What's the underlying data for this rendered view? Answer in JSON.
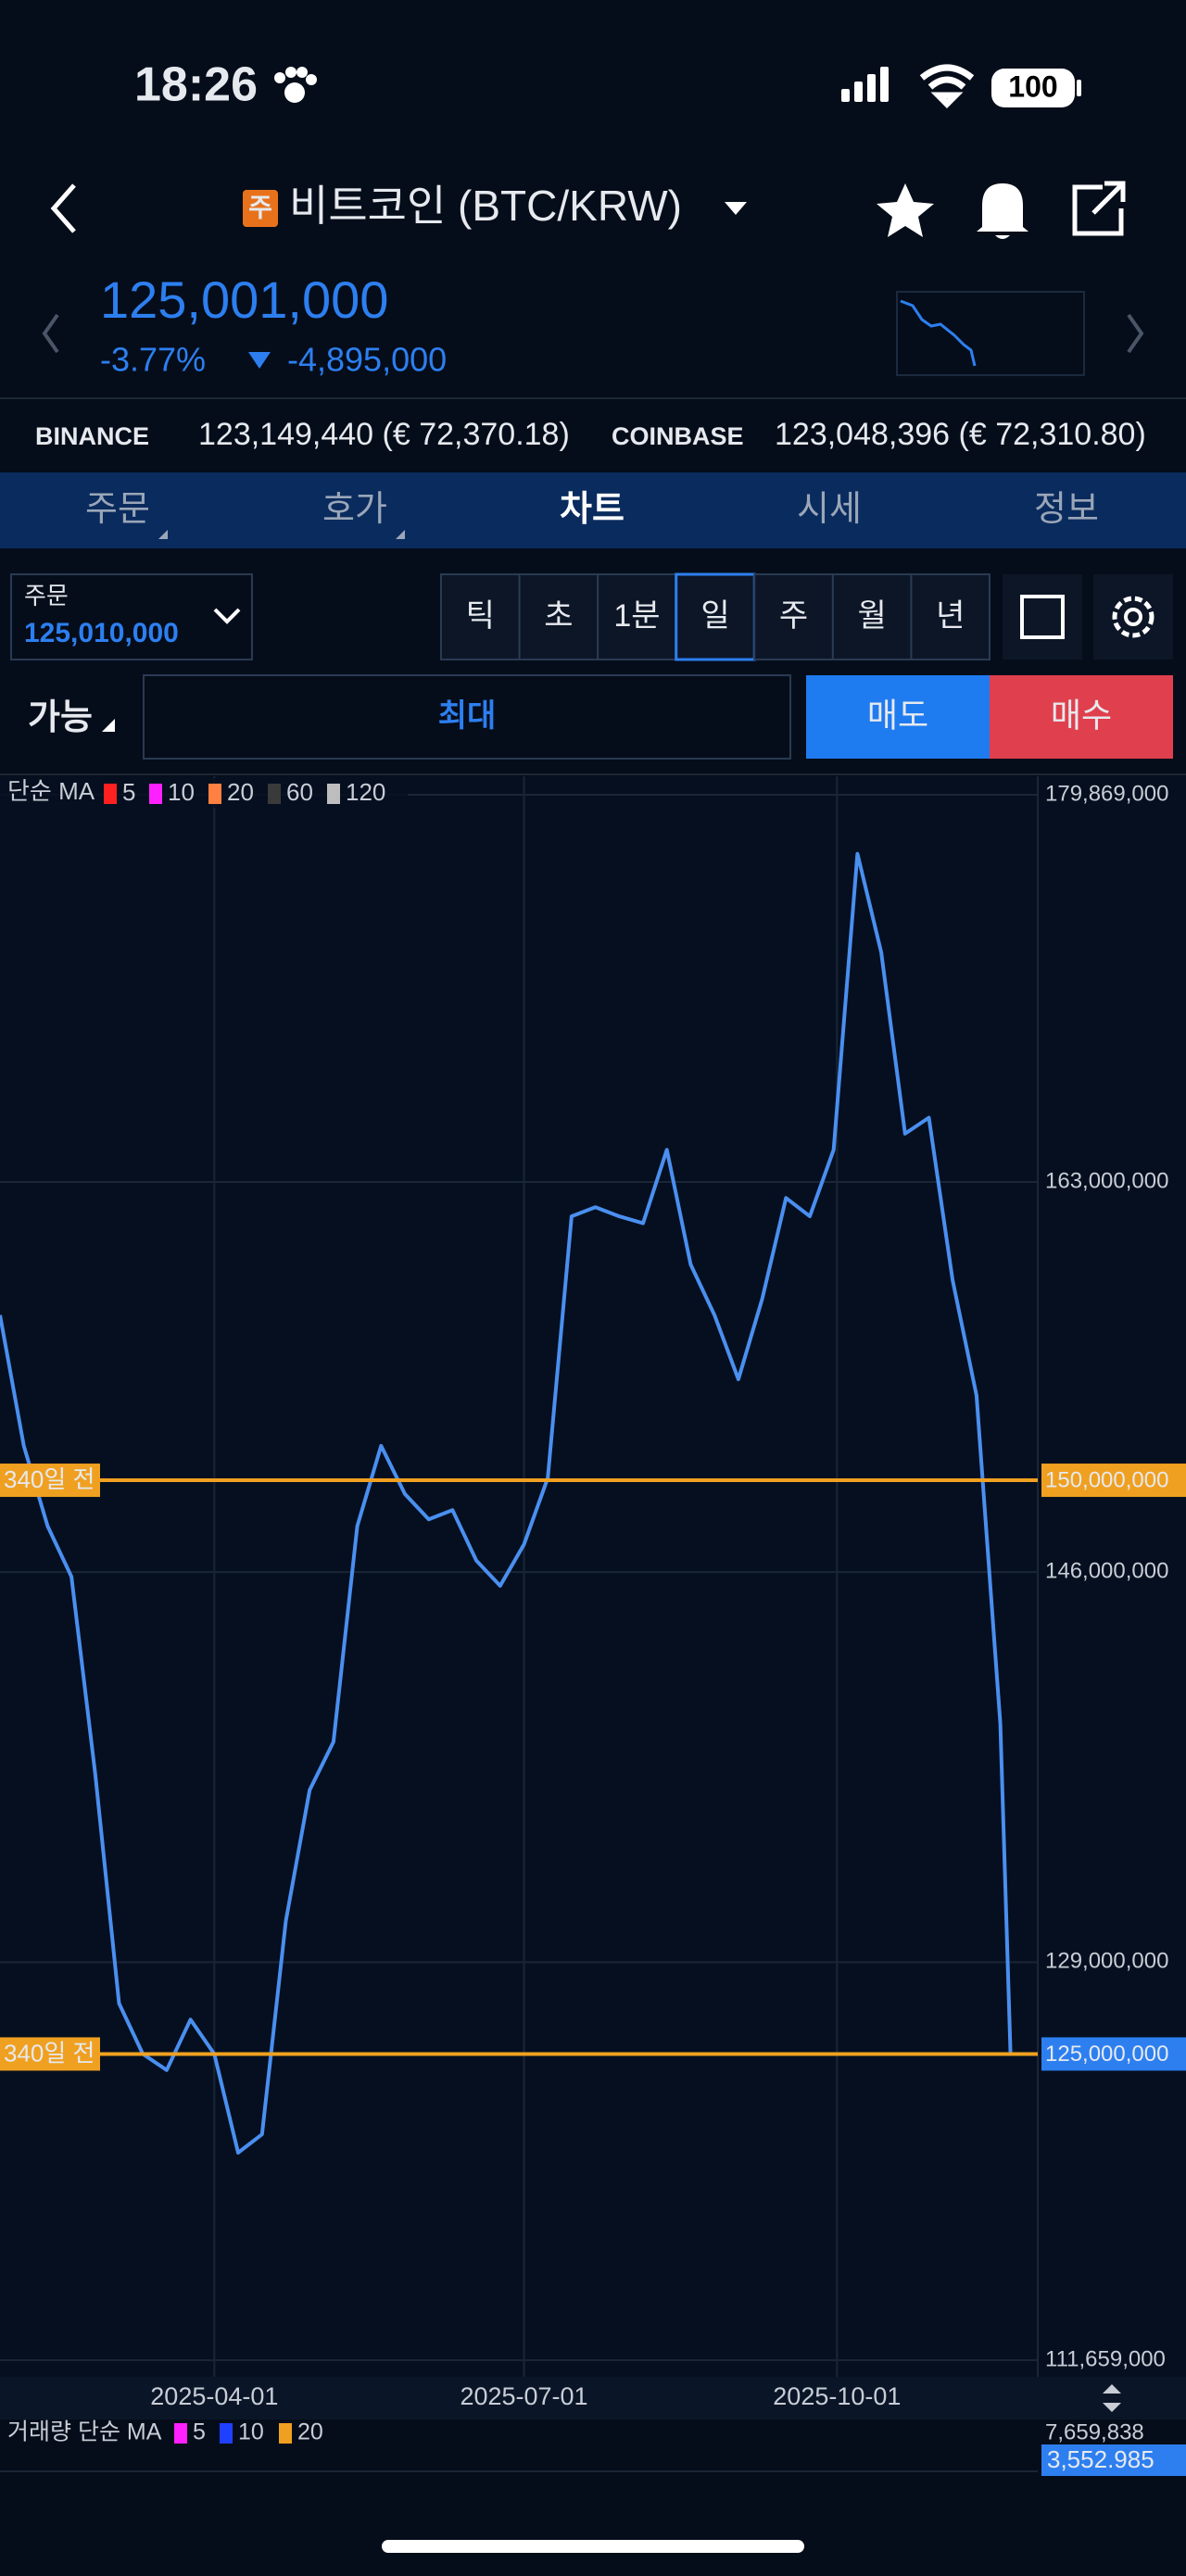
{
  "status_bar": {
    "time": "18:26",
    "battery": "100"
  },
  "header": {
    "badge": "주",
    "title": "비트코인 (BTC/KRW)"
  },
  "quote": {
    "price": "125,001,000",
    "change_pct": "-3.77%",
    "change": "-4,895,000"
  },
  "exchanges": [
    {
      "name": "BINANCE",
      "price": "123,149,440 (€ 72,370.18)"
    },
    {
      "name": "COINBASE",
      "price": "123,048,396 (€ 72,310.80)"
    }
  ],
  "tabs": [
    "주문",
    "호가",
    "차트",
    "시세",
    "정보"
  ],
  "active_tab": 2,
  "order": {
    "label": "주문",
    "price": "125,010,000"
  },
  "intervals": [
    "틱",
    "초",
    "1분",
    "일",
    "주",
    "월",
    "년"
  ],
  "active_interval": 3,
  "trade": {
    "available": "가능",
    "amount": "최대",
    "sell": "매도",
    "buy": "매수"
  },
  "chart_data": {
    "type": "line",
    "color": "#4a8ff0",
    "x": [
      "2025-01-28",
      "2025-02-04",
      "2025-02-11",
      "2025-02-18",
      "2025-02-25",
      "2025-03-04",
      "2025-03-11",
      "2025-03-18",
      "2025-03-25",
      "2025-04-01",
      "2025-04-08",
      "2025-04-15",
      "2025-04-22",
      "2025-04-29",
      "2025-05-06",
      "2025-05-13",
      "2025-05-20",
      "2025-05-27",
      "2025-06-03",
      "2025-06-10",
      "2025-06-17",
      "2025-06-24",
      "2025-07-01",
      "2025-07-08",
      "2025-07-15",
      "2025-07-22",
      "2025-07-29",
      "2025-08-05",
      "2025-08-12",
      "2025-08-19",
      "2025-08-26",
      "2025-09-02",
      "2025-09-09",
      "2025-09-16",
      "2025-09-23",
      "2025-09-30",
      "2025-10-07",
      "2025-10-14",
      "2025-10-21",
      "2025-10-28",
      "2025-11-04",
      "2025-11-11",
      "2025-11-18",
      "2025-11-21"
    ],
    "values": [
      157200000,
      151500000,
      148000000,
      145800000,
      137200000,
      127200000,
      125000000,
      124300000,
      126500000,
      125000000,
      120700000,
      121500000,
      130800000,
      136500000,
      138600000,
      148000000,
      151500000,
      149400000,
      148300000,
      148700000,
      146500000,
      145400000,
      147200000,
      150100000,
      161500000,
      161900000,
      161500000,
      161200000,
      164400000,
      159400000,
      157200000,
      154400000,
      157900000,
      162300000,
      161500000,
      164400000,
      177300000,
      173000000,
      165100000,
      165800000,
      158700000,
      153700000,
      139400000,
      125001000
    ],
    "xlim": [
      "2025-01-28",
      "2025-11-29"
    ],
    "xticks": [
      "2025-04-01",
      "2025-07-01",
      "2025-10-01"
    ],
    "ylim": [
      111659000,
      179869000
    ],
    "yticks": [
      {
        "value": 111659000,
        "label": "111,659,000"
      },
      {
        "value": 129000000,
        "label": "129,000,000"
      },
      {
        "value": 146000000,
        "label": "146,000,000"
      },
      {
        "value": 163000000,
        "label": "163,000,000"
      },
      {
        "value": 179869000,
        "label": "179,869,000"
      }
    ],
    "grid": true,
    "legend": {
      "title": "단순 MA",
      "items": [
        {
          "label": "5",
          "color": "#ff2020"
        },
        {
          "label": "10",
          "color": "#ff20ff"
        },
        {
          "label": "20",
          "color": "#ff8040"
        },
        {
          "label": "60",
          "color": "#3a3a3a"
        },
        {
          "label": "120",
          "color": "#bdbdbd"
        }
      ]
    },
    "levels": [
      {
        "value": 150000000,
        "label": "150,000,000",
        "note": "340일 전",
        "color": "#f0a020",
        "badge": "#f0a020"
      },
      {
        "value": 125000000,
        "label": "125,000,000",
        "note": "340일 전",
        "color": "#f0a020",
        "badge": "#2d7ff0"
      }
    ],
    "volume": {
      "title": "거래량 단순 MA",
      "items": [
        {
          "label": "5",
          "color": "#ff20ff"
        },
        {
          "label": "10",
          "color": "#2040ff"
        },
        {
          "label": "20",
          "color": "#f0a020"
        }
      ],
      "max_label": "7,659,838",
      "last_label": "3,552.985"
    }
  }
}
